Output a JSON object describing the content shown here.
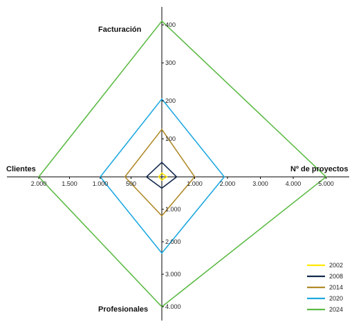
{
  "chart_data": {
    "type": "radar",
    "axes": [
      {
        "key": "facturacion",
        "label": "Facturación",
        "ticks": [
          "100",
          "200",
          "300",
          "400"
        ],
        "max": 410
      },
      {
        "key": "proyectos",
        "label": "Nº de proyectos",
        "ticks": [
          "1.000",
          "2.000",
          "3.000",
          "4.000",
          "5.000"
        ],
        "max": 5000
      },
      {
        "key": "profesionales",
        "label": "Profesionales",
        "ticks": [
          "1.000",
          "2.000",
          "3.000",
          "4.000"
        ],
        "max": 4000
      },
      {
        "key": "clientes",
        "label": "Clientes",
        "ticks": [
          "500",
          "1.000",
          "1.500",
          "2.000"
        ],
        "max": 2000
      }
    ],
    "tick_values": {
      "facturacion": [
        100,
        200,
        300,
        400
      ],
      "proyectos": [
        1000,
        2000,
        3000,
        4000,
        5000
      ],
      "profesionales": [
        1000,
        2000,
        3000,
        4000
      ],
      "clientes": [
        500,
        1000,
        1500,
        2000
      ]
    },
    "series": [
      {
        "name": "2002",
        "color": "#ffe800",
        "values": {
          "facturacion": 10,
          "proyectos": 150,
          "profesionales": 100,
          "clientes": 50
        }
      },
      {
        "name": "2008",
        "color": "#12284c",
        "values": {
          "facturacion": 38,
          "proyectos": 450,
          "profesionales": 350,
          "clientes": 250
        }
      },
      {
        "name": "2014",
        "color": "#b08a2a",
        "values": {
          "facturacion": 125,
          "proyectos": 1000,
          "profesionales": 1200,
          "clientes": 600
        }
      },
      {
        "name": "2020",
        "color": "#1fa9e0",
        "values": {
          "facturacion": 205,
          "proyectos": 1900,
          "profesionales": 2350,
          "clientes": 1000
        }
      },
      {
        "name": "2024",
        "color": "#5dbb46",
        "values": {
          "facturacion": 410,
          "proyectos": 5000,
          "profesionales": 4000,
          "clientes": 2000
        }
      }
    ],
    "legend_position": "bottom-right",
    "grid": false
  }
}
